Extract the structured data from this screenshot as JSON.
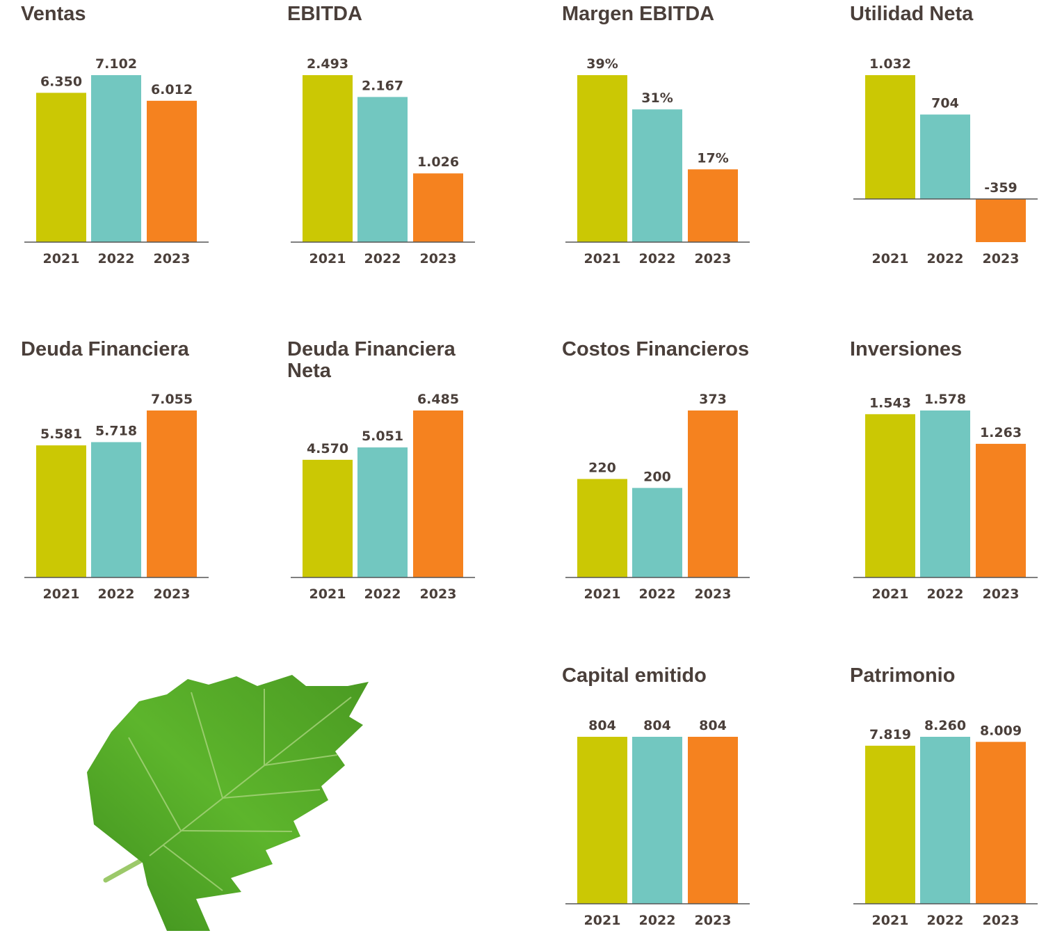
{
  "chart_data": [
    {
      "type": "bar",
      "title": "Ventas",
      "categories": [
        "2021",
        "2022",
        "2023"
      ],
      "values": [
        6350,
        7102,
        6012
      ],
      "value_labels": [
        "6.350",
        "7.102",
        "6.012"
      ],
      "colors": [
        "#cbc804",
        "#72c7c0",
        "#f5821f"
      ]
    },
    {
      "type": "bar",
      "title": "EBITDA",
      "categories": [
        "2021",
        "2022",
        "2023"
      ],
      "values": [
        2493,
        2167,
        1026
      ],
      "value_labels": [
        "2.493",
        "2.167",
        "1.026"
      ],
      "colors": [
        "#cbc804",
        "#72c7c0",
        "#f5821f"
      ]
    },
    {
      "type": "bar",
      "title": "Margen EBITDA",
      "categories": [
        "2021",
        "2022",
        "2023"
      ],
      "values": [
        39,
        31,
        17
      ],
      "value_labels": [
        "39%",
        "31%",
        "17%"
      ],
      "colors": [
        "#cbc804",
        "#72c7c0",
        "#f5821f"
      ]
    },
    {
      "type": "bar",
      "title": "Utilidad Neta",
      "categories": [
        "2021",
        "2022",
        "2023"
      ],
      "values": [
        1032,
        704,
        -359
      ],
      "value_labels": [
        "1.032",
        "704",
        "-359"
      ],
      "colors": [
        "#cbc804",
        "#72c7c0",
        "#f5821f"
      ]
    },
    {
      "type": "bar",
      "title": "Deuda Financiera",
      "categories": [
        "2021",
        "2022",
        "2023"
      ],
      "values": [
        5581,
        5718,
        7055
      ],
      "value_labels": [
        "5.581",
        "5.718",
        "7.055"
      ],
      "colors": [
        "#cbc804",
        "#72c7c0",
        "#f5821f"
      ]
    },
    {
      "type": "bar",
      "title": "Deuda Financiera Neta",
      "categories": [
        "2021",
        "2022",
        "2023"
      ],
      "values": [
        4570,
        5051,
        6485
      ],
      "value_labels": [
        "4.570",
        "5.051",
        "6.485"
      ],
      "colors": [
        "#cbc804",
        "#72c7c0",
        "#f5821f"
      ]
    },
    {
      "type": "bar",
      "title": "Costos Financieros",
      "categories": [
        "2021",
        "2022",
        "2023"
      ],
      "values": [
        220,
        200,
        373
      ],
      "colors": [
        "#cbc804",
        "#72c7c0",
        "#f5821f"
      ]
    },
    {
      "type": "bar",
      "title": "Inversiones",
      "categories": [
        "2021",
        "2022",
        "2023"
      ],
      "values": [
        1543,
        1578,
        1263
      ],
      "value_labels": [
        "1.543",
        "1.578",
        "1.263"
      ],
      "colors": [
        "#cbc804",
        "#72c7c0",
        "#f5821f"
      ]
    },
    {
      "type": "bar",
      "title": "Capital emitido",
      "categories": [
        "2021",
        "2022",
        "2023"
      ],
      "values": [
        804,
        804,
        804
      ],
      "colors": [
        "#cbc804",
        "#72c7c0",
        "#f5821f"
      ]
    },
    {
      "type": "bar",
      "title": "Patrimonio",
      "categories": [
        "2021",
        "2022",
        "2023"
      ],
      "values": [
        7819,
        8260,
        8009
      ],
      "value_labels": [
        "7.819",
        "8.260",
        "8.009"
      ],
      "colors": [
        "#cbc804",
        "#72c7c0",
        "#f5821f"
      ]
    }
  ]
}
